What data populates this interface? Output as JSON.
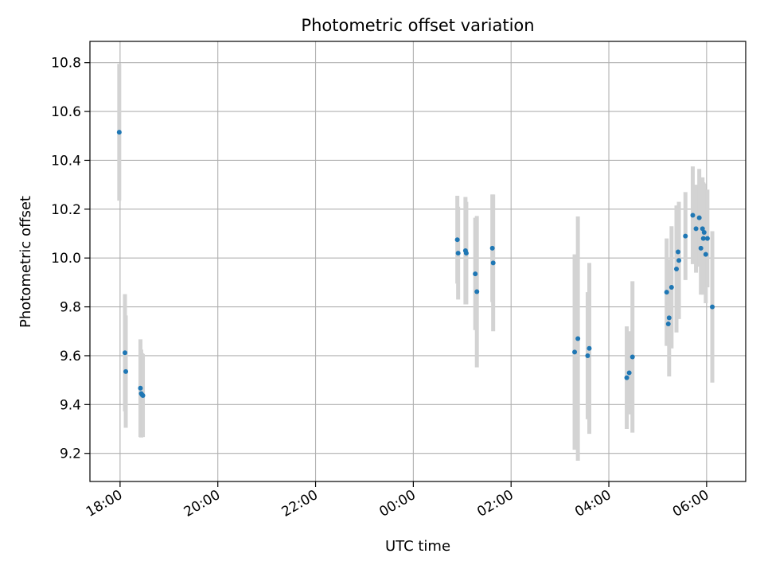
{
  "chart_data": {
    "type": "scatter",
    "title": "Photometric offset variation",
    "xlabel": "UTC time",
    "ylabel": "Photometric offset",
    "x_is_time": true,
    "x_ticks": [
      "18:00",
      "20:00",
      "22:00",
      "00:00",
      "02:00",
      "04:00",
      "06:00"
    ],
    "y_ticks": [
      "9.2",
      "9.4",
      "9.6",
      "9.8",
      "10.0",
      "10.2",
      "10.4",
      "10.6",
      "10.8"
    ],
    "xlim": [
      "17:23",
      "06:48 (+1 day)"
    ],
    "ylim": [
      9.085,
      10.887
    ],
    "grid": true,
    "legend": "none",
    "colors": {
      "point": "#1f77b4",
      "errorbar": "#d3d3d3",
      "grid": "#b0b0b0",
      "axis": "#000000"
    },
    "series": [
      {
        "points": [
          {
            "t": "17:59",
            "y": 10.515,
            "err": 0.28
          },
          {
            "t": "18:06",
            "y": 9.612,
            "err": 0.24
          },
          {
            "t": "18:07",
            "y": 9.535,
            "err": 0.23
          },
          {
            "t": "18:25",
            "y": 9.467,
            "err": 0.2
          },
          {
            "t": "18:26",
            "y": 9.445,
            "err": 0.18
          },
          {
            "t": "18:27",
            "y": 9.44,
            "err": 0.17
          },
          {
            "t": "18:28",
            "y": 9.437,
            "err": 0.17
          },
          {
            "t": "00:54",
            "y": 10.075,
            "err": 0.18
          },
          {
            "t": "00:55",
            "y": 10.02,
            "err": 0.19
          },
          {
            "t": "01:04",
            "y": 10.03,
            "err": 0.22
          },
          {
            "t": "01:05",
            "y": 10.02,
            "err": 0.21
          },
          {
            "t": "01:16",
            "y": 9.935,
            "err": 0.23
          },
          {
            "t": "01:18",
            "y": 9.862,
            "err": 0.31
          },
          {
            "t": "01:37",
            "y": 10.04,
            "err": 0.22
          },
          {
            "t": "01:38",
            "y": 9.98,
            "err": 0.28
          },
          {
            "t": "03:18",
            "y": 9.615,
            "err": 0.4
          },
          {
            "t": "03:22",
            "y": 9.67,
            "err": 0.5
          },
          {
            "t": "03:34",
            "y": 9.6,
            "err": 0.26
          },
          {
            "t": "03:36",
            "y": 9.63,
            "err": 0.35
          },
          {
            "t": "04:22",
            "y": 9.51,
            "err": 0.21
          },
          {
            "t": "04:25",
            "y": 9.53,
            "err": 0.17
          },
          {
            "t": "04:29",
            "y": 9.595,
            "err": 0.31
          },
          {
            "t": "05:11",
            "y": 9.86,
            "err": 0.22
          },
          {
            "t": "05:13",
            "y": 9.73,
            "err": 0.09
          },
          {
            "t": "05:14",
            "y": 9.755,
            "err": 0.24
          },
          {
            "t": "05:17",
            "y": 9.88,
            "err": 0.25
          },
          {
            "t": "05:23",
            "y": 9.955,
            "err": 0.26
          },
          {
            "t": "05:25",
            "y": 10.025,
            "err": 0.19
          },
          {
            "t": "05:26",
            "y": 9.99,
            "err": 0.24
          },
          {
            "t": "05:34",
            "y": 10.09,
            "err": 0.18
          },
          {
            "t": "05:43",
            "y": 10.175,
            "err": 0.2
          },
          {
            "t": "05:47",
            "y": 10.12,
            "err": 0.18
          },
          {
            "t": "05:51",
            "y": 10.165,
            "err": 0.2
          },
          {
            "t": "05:53",
            "y": 10.04,
            "err": 0.19
          },
          {
            "t": "05:55",
            "y": 10.12,
            "err": 0.21
          },
          {
            "t": "05:56",
            "y": 10.08,
            "err": 0.23
          },
          {
            "t": "05:57",
            "y": 10.105,
            "err": 0.2
          },
          {
            "t": "05:59",
            "y": 10.015,
            "err": 0.2
          },
          {
            "t": "06:01",
            "y": 10.08,
            "err": 0.2
          },
          {
            "t": "06:07",
            "y": 9.8,
            "err": 0.31
          }
        ]
      }
    ]
  }
}
